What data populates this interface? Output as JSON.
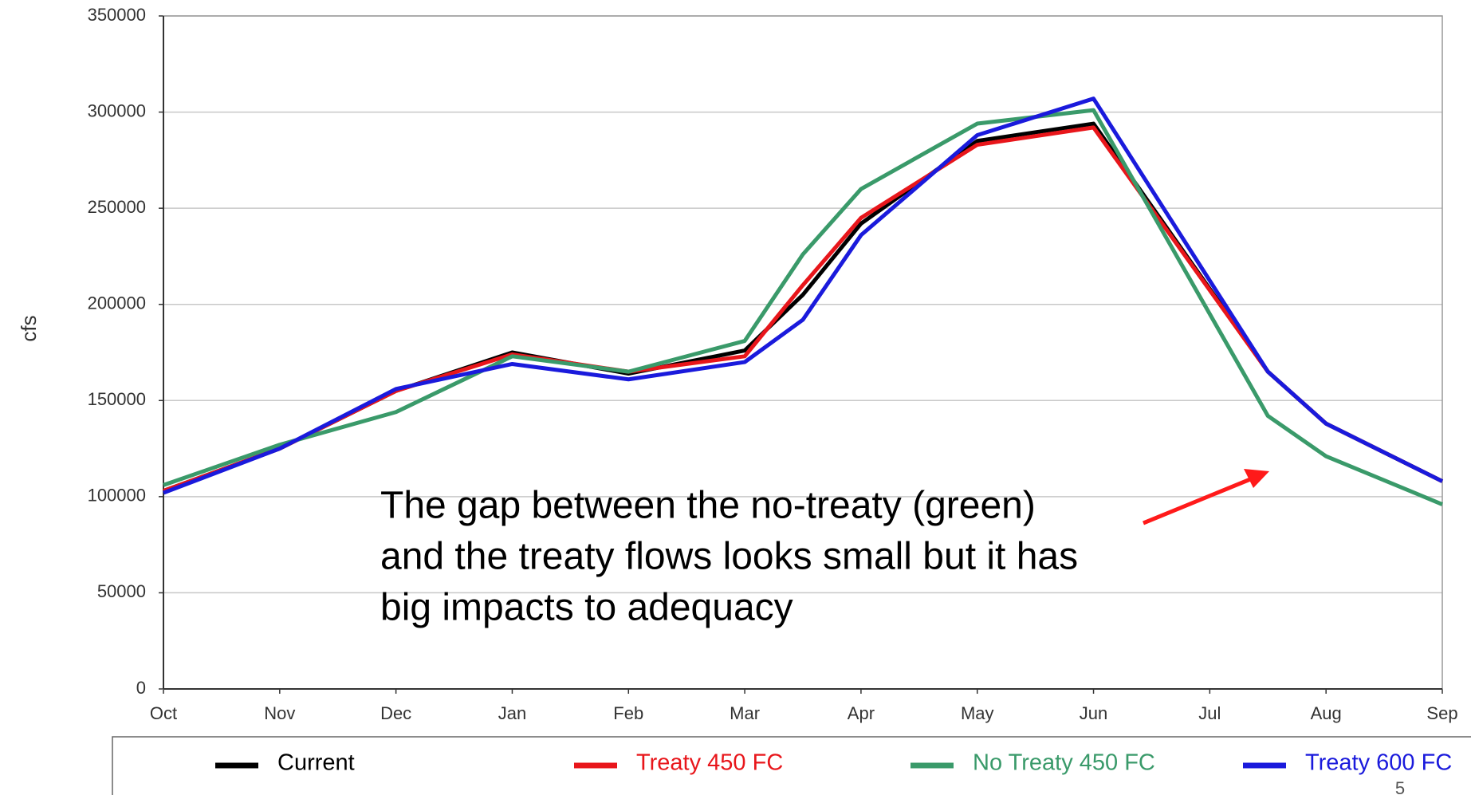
{
  "chart_data": {
    "type": "line",
    "y_label": "cfs",
    "x": [
      0,
      1,
      2,
      3,
      4,
      5,
      5.5,
      6,
      7,
      8,
      9.5,
      10,
      11
    ],
    "xlim": [
      0,
      11
    ],
    "xticks": [
      {
        "value": 0,
        "label": "Oct"
      },
      {
        "value": 1,
        "label": "Nov"
      },
      {
        "value": 2,
        "label": "Dec"
      },
      {
        "value": 3,
        "label": "Jan"
      },
      {
        "value": 4,
        "label": "Feb"
      },
      {
        "value": 5,
        "label": "Mar"
      },
      {
        "value": 6,
        "label": "Apr"
      },
      {
        "value": 7,
        "label": "May"
      },
      {
        "value": 8,
        "label": "Jun"
      },
      {
        "value": 9,
        "label": "Jul"
      },
      {
        "value": 10,
        "label": "Aug"
      },
      {
        "value": 11,
        "label": "Sep"
      }
    ],
    "ylim": [
      0,
      350000
    ],
    "yticks": [
      0,
      50000,
      100000,
      150000,
      200000,
      250000,
      300000,
      350000
    ],
    "grid": true,
    "series": [
      {
        "name": "Current",
        "color": "#000000",
        "values": [
          103000,
          125000,
          155000,
          175000,
          164000,
          176000,
          205000,
          242000,
          285000,
          294000,
          165000,
          138000,
          108000
        ]
      },
      {
        "name": "Treaty 450 FC",
        "color": "#e8161b",
        "values": [
          103000,
          125000,
          155000,
          174000,
          165000,
          173000,
          210000,
          245000,
          283000,
          292000,
          165000,
          138000,
          108000
        ]
      },
      {
        "name": "No Treaty 450 FC",
        "color": "#3a9a6a",
        "values": [
          106000,
          127000,
          144000,
          173000,
          165000,
          181000,
          226000,
          260000,
          294000,
          301000,
          142000,
          121000,
          96000
        ]
      },
      {
        "name": "Treaty 600 FC",
        "color": "#1a1adc",
        "values": [
          102000,
          125000,
          156000,
          169000,
          161000,
          170000,
          192000,
          236000,
          288000,
          307000,
          165000,
          138000,
          108000
        ]
      }
    ],
    "annotation": [
      "The gap between the no-treaty (green)",
      "and the treaty flows looks small but it has",
      "big impacts to adequacy"
    ]
  },
  "page_number": "5"
}
